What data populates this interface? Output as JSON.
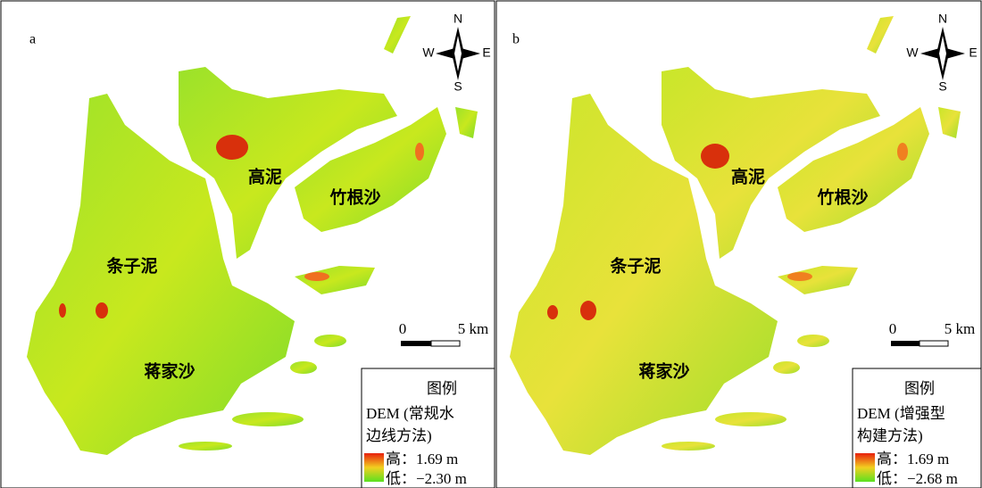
{
  "panels": [
    {
      "label": "a",
      "places": [
        "高泥",
        "竹根沙",
        "条子泥",
        "蒋家沙"
      ],
      "compass": {
        "n": "N",
        "e": "E",
        "s": "S",
        "w": "W"
      },
      "scale": {
        "zero": "0",
        "distance": "5 km"
      },
      "legend": {
        "title": "图例",
        "subtitle_line1": "DEM (常规水",
        "subtitle_line2": "边线方法)",
        "high": "高：1.69 m",
        "low": "低：−2.30 m"
      }
    },
    {
      "label": "b",
      "places": [
        "高泥",
        "竹根沙",
        "条子泥",
        "蒋家沙"
      ],
      "compass": {
        "n": "N",
        "e": "E",
        "s": "S",
        "w": "W"
      },
      "scale": {
        "zero": "0",
        "distance": "5 km"
      },
      "legend": {
        "title": "图例",
        "subtitle_line1": "DEM (增强型",
        "subtitle_line2": "构建方法)",
        "high": "高：1.69 m",
        "low": "低：−2.68 m"
      }
    }
  ]
}
